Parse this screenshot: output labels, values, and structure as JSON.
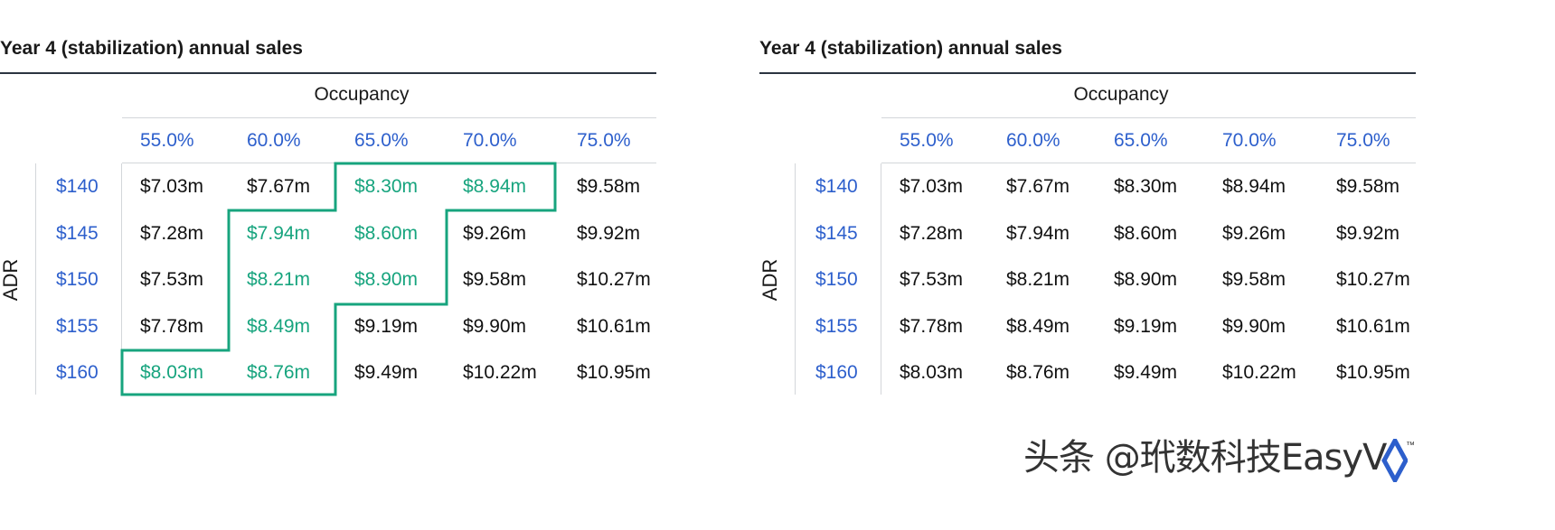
{
  "chart_data": [
    {
      "type": "table",
      "title": "Year 4 (stabilization) annual sales",
      "column_group_label": "Occupancy",
      "row_group_label": "ADR",
      "columns": [
        "55.0%",
        "60.0%",
        "65.0%",
        "70.0%",
        "75.0%"
      ],
      "rows": [
        "$140",
        "$145",
        "$150",
        "$155",
        "$160"
      ],
      "cells": [
        [
          "$7.03m",
          "$7.67m",
          "$8.30m",
          "$8.94m",
          "$9.58m"
        ],
        [
          "$7.28m",
          "$7.94m",
          "$8.60m",
          "$9.26m",
          "$9.92m"
        ],
        [
          "$7.53m",
          "$8.21m",
          "$8.90m",
          "$9.58m",
          "$10.27m"
        ],
        [
          "$7.78m",
          "$8.49m",
          "$9.19m",
          "$9.90m",
          "$10.61m"
        ],
        [
          "$8.03m",
          "$8.76m",
          "$9.49m",
          "$10.22m",
          "$10.95m"
        ]
      ],
      "highlighted": [
        [
          false,
          false,
          true,
          true,
          false
        ],
        [
          false,
          true,
          true,
          false,
          false
        ],
        [
          false,
          true,
          true,
          false,
          false
        ],
        [
          false,
          true,
          false,
          false,
          false
        ],
        [
          true,
          true,
          false,
          false,
          false
        ]
      ],
      "highlight_color": "#17a47e",
      "label_color": "#2d5fcc"
    },
    {
      "type": "table",
      "title": "Year 4 (stabilization) annual sales",
      "column_group_label": "Occupancy",
      "row_group_label": "ADR",
      "columns": [
        "55.0%",
        "60.0%",
        "65.0%",
        "70.0%",
        "75.0%"
      ],
      "rows": [
        "$140",
        "$145",
        "$150",
        "$155",
        "$160"
      ],
      "cells": [
        [
          "$7.03m",
          "$7.67m",
          "$8.30m",
          "$8.94m",
          "$9.58m"
        ],
        [
          "$7.28m",
          "$7.94m",
          "$8.60m",
          "$9.26m",
          "$9.92m"
        ],
        [
          "$7.53m",
          "$8.21m",
          "$8.90m",
          "$9.58m",
          "$10.27m"
        ],
        [
          "$7.78m",
          "$8.49m",
          "$9.19m",
          "$9.90m",
          "$10.61m"
        ],
        [
          "$8.03m",
          "$8.76m",
          "$9.49m",
          "$10.22m",
          "$10.95m"
        ]
      ],
      "label_color": "#2d5fcc"
    }
  ],
  "watermark": {
    "text": "头条 @玳数科技EasyV",
    "logo_icon": "toptal-diamond-icon",
    "trademark": "™"
  }
}
